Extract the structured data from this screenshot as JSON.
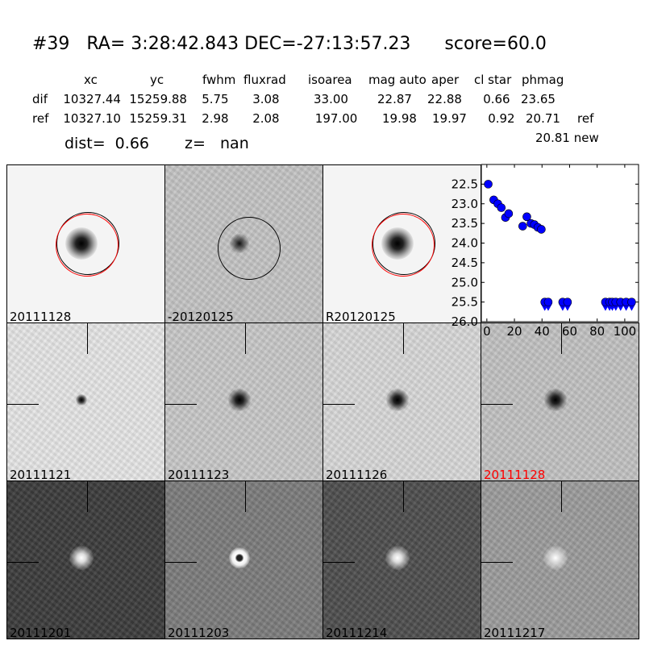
{
  "header": {
    "title": "#39   RA= 3:28:42.843 DEC=-27:13:57.23      score=60.0"
  },
  "table": {
    "columns": [
      "xc",
      "yc",
      "fwhm",
      "fluxrad",
      "isoarea",
      "mag auto",
      "aper",
      "cl star",
      "phmag"
    ],
    "rows": [
      {
        "label": "dif",
        "values": [
          "10327.44",
          "15259.88",
          "5.75",
          "3.08",
          "33.00",
          "22.87",
          "22.88",
          "0.66",
          "23.65"
        ],
        "suffix": ""
      },
      {
        "label": "ref",
        "values": [
          "10327.10",
          "15259.31",
          "2.98",
          "2.08",
          "197.00",
          "19.98",
          "19.97",
          "0.92",
          "20.71"
        ],
        "suffix": "ref"
      }
    ],
    "extra_phmag": "20.81 new",
    "dist": "dist=  0.66",
    "z": "z=   nan"
  },
  "panels": [
    {
      "label": "20111128",
      "bg": "#f4f4f4",
      "blob": "dark",
      "circle": true,
      "red": true
    },
    {
      "label": "-20120125",
      "bg": "#c4c4c4",
      "blob": "darkfaint",
      "circle": true,
      "red": false
    },
    {
      "label": "R20120125",
      "bg": "#f4f4f4",
      "blob": "dark",
      "circle": true,
      "red": true
    },
    null,
    {
      "label": "20111121",
      "bg": "#e6e6e6",
      "blob": "darksmall",
      "cross": true
    },
    {
      "label": "20111123",
      "bg": "#c8c8c8",
      "blob": "dark",
      "cross": true
    },
    {
      "label": "20111126",
      "bg": "#d8d8d8",
      "blob": "dark",
      "cross": true
    },
    {
      "label": "20111128",
      "bg": "#c2c2c2",
      "blob": "dark",
      "cross": true,
      "label_color": "#ff0000"
    },
    {
      "label": "20111201",
      "bg": "#3c3c3c",
      "blob": "bright",
      "cross": true
    },
    {
      "label": "20111203",
      "bg": "#7c7c7c",
      "blob": "ring",
      "cross": true
    },
    {
      "label": "20111214",
      "bg": "#4e4e4e",
      "blob": "bright",
      "cross": true
    },
    {
      "label": "20111217",
      "bg": "#9c9c9c",
      "blob": "bright",
      "cross": true
    }
  ],
  "chart_data": {
    "type": "scatter",
    "xlim": [
      -4,
      110
    ],
    "ylim": [
      26.0,
      22.0
    ],
    "y_inverted": true,
    "xticks": [
      "0",
      "20",
      "40",
      "60",
      "80",
      "100"
    ],
    "yticks": [
      "22.5",
      "23.0",
      "23.5",
      "24.0",
      "24.5",
      "25.0",
      "25.5",
      "26.0"
    ],
    "marker_color": "#0000ff",
    "series": [
      {
        "marker": "circle",
        "x": [
          1,
          5,
          8,
          10.5,
          13.5,
          15.8,
          26,
          29,
          32,
          34.5,
          37,
          39.5
        ],
        "y": [
          22.5,
          22.9,
          23.0,
          23.1,
          23.35,
          23.25,
          23.57,
          23.33,
          23.5,
          23.53,
          23.6,
          23.65
        ]
      },
      {
        "marker": "upper-limit",
        "x": [
          42,
          44.5,
          55,
          58.5,
          86,
          89,
          91,
          93.5,
          97,
          101,
          105
        ],
        "y": [
          25.5,
          25.5,
          25.5,
          25.5,
          25.5,
          25.5,
          25.5,
          25.5,
          25.5,
          25.5,
          25.5
        ]
      }
    ]
  }
}
